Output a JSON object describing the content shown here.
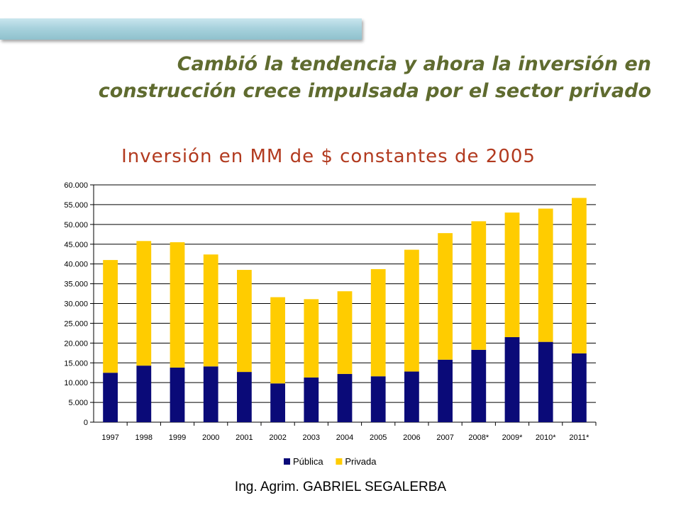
{
  "slide": {
    "title_line1": "Cambió la tendencia y ahora la inversión en",
    "title_line2": "construcción crece impulsada por el sector privado",
    "footer": "Ing. Agrim. GABRIEL SEGALERBA"
  },
  "chart_data": {
    "type": "bar",
    "stacked": true,
    "title": "Inversión en MM de $ constantes de 2005",
    "categories": [
      "1997",
      "1998",
      "1999",
      "2000",
      "2001",
      "2002",
      "2003",
      "2004",
      "2005",
      "2006",
      "2007",
      "2008*",
      "2009*",
      "2010*",
      "2011*"
    ],
    "series": [
      {
        "name": "Pública",
        "color": "#0a0a78",
        "values": [
          12500,
          14300,
          13800,
          14100,
          12700,
          9800,
          11300,
          12200,
          11600,
          12800,
          15800,
          18300,
          21500,
          20300,
          17400
        ]
      },
      {
        "name": "Privada",
        "color": "#ffcc00",
        "values": [
          28500,
          31500,
          31700,
          28300,
          25800,
          21800,
          19800,
          20900,
          27100,
          30800,
          32000,
          32500,
          31500,
          33700,
          39300
        ]
      }
    ],
    "ylim": [
      0,
      60000
    ],
    "yticks": [
      "0",
      "5.000",
      "10.000",
      "15.000",
      "20.000",
      "25.000",
      "30.000",
      "35.000",
      "40.000",
      "45.000",
      "50.000",
      "55.000",
      "60.000"
    ],
    "grid": true,
    "legend_position": "bottom"
  }
}
